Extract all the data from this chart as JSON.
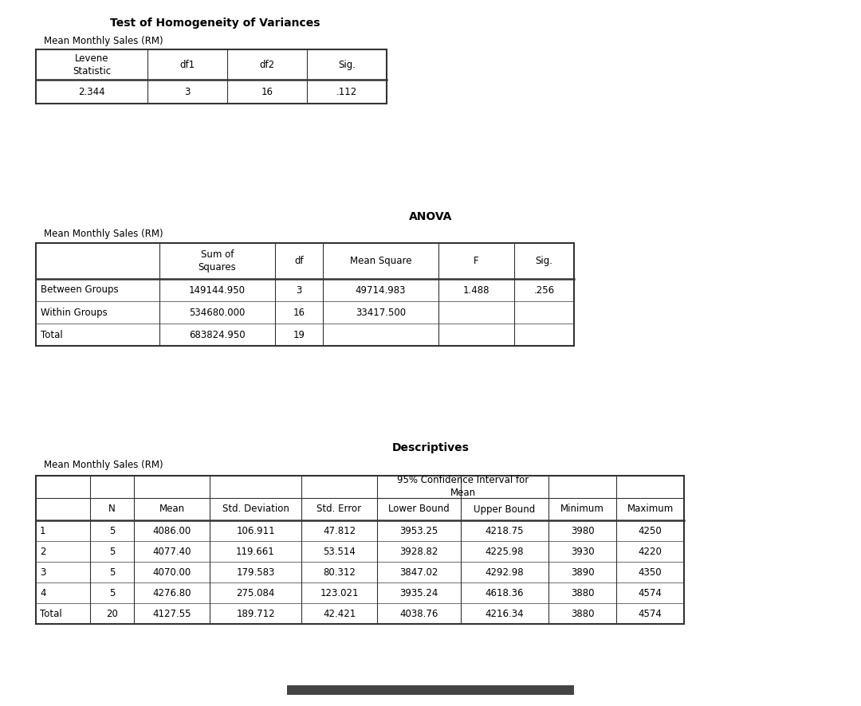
{
  "title1": "Test of Homogeneity of Variances",
  "subtitle1": "Mean Monthly Sales (RM)",
  "levene_headers": [
    "Levene\nStatistic",
    "df1",
    "df2",
    "Sig."
  ],
  "levene_data": [
    "2.344",
    "3",
    "16",
    ".112"
  ],
  "title2": "ANOVA",
  "subtitle2": "Mean Monthly Sales (RM)",
  "anova_headers": [
    "",
    "Sum of\nSquares",
    "df",
    "Mean Square",
    "F",
    "Sig."
  ],
  "anova_data": [
    [
      "Between Groups",
      "149144.950",
      "3",
      "49714.983",
      "1.488",
      ".256"
    ],
    [
      "Within Groups",
      "534680.000",
      "16",
      "33417.500",
      "",
      ""
    ],
    [
      "Total",
      "683824.950",
      "19",
      "",
      "",
      ""
    ]
  ],
  "title3": "Descriptives",
  "subtitle3": "Mean Monthly Sales (RM)",
  "desc_data": [
    [
      "1",
      "5",
      "4086.00",
      "106.911",
      "47.812",
      "3953.25",
      "4218.75",
      "3980",
      "4250"
    ],
    [
      "2",
      "5",
      "4077.40",
      "119.661",
      "53.514",
      "3928.82",
      "4225.98",
      "3930",
      "4220"
    ],
    [
      "3",
      "5",
      "4070.00",
      "179.583",
      "80.312",
      "3847.02",
      "4292.98",
      "3890",
      "4350"
    ],
    [
      "4",
      "5",
      "4276.80",
      "275.084",
      "123.021",
      "3935.24",
      "4618.36",
      "3880",
      "4574"
    ],
    [
      "Total",
      "20",
      "4127.55",
      "189.712",
      "42.421",
      "4038.76",
      "4216.34",
      "3880",
      "4574"
    ]
  ],
  "bg_color": "#dedede",
  "text_color": "black",
  "border_color": "#333333",
  "font_family": "sans-serif",
  "font_size": 8.5,
  "title_font_size": 10,
  "sub_title_font_size": 8.5
}
